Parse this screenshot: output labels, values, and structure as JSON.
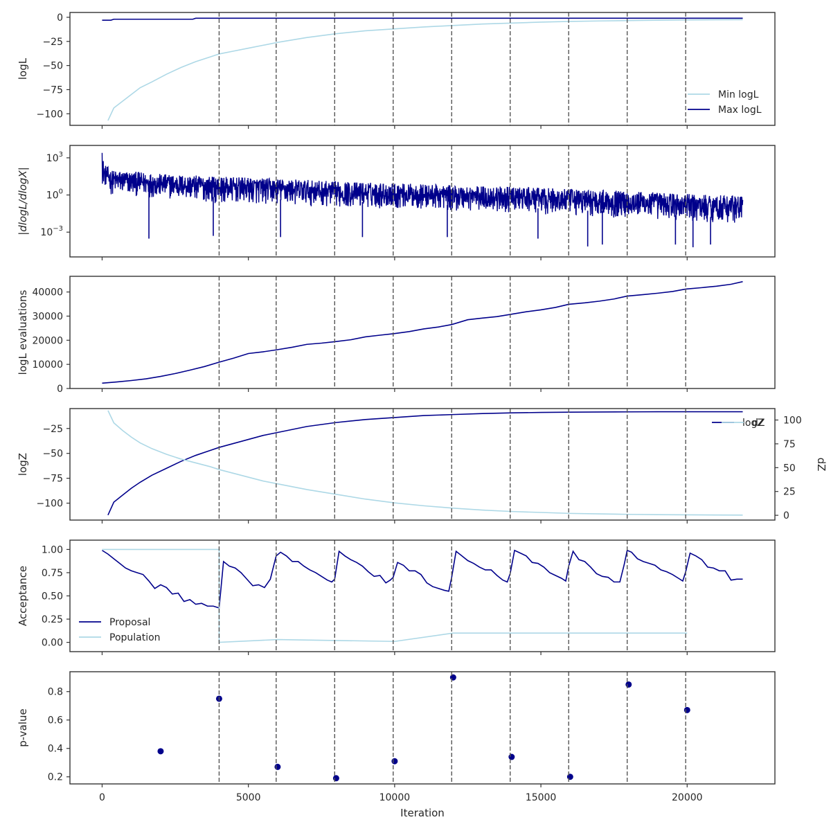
{
  "figure": {
    "xlabel": "Iteration",
    "xlim": [
      -1100,
      23000
    ],
    "xticks": [
      0,
      5000,
      10000,
      15000,
      20000
    ],
    "xtick_labels": [
      "0",
      "5000",
      "10000",
      "15000",
      "20000"
    ],
    "vlines": [
      4000,
      5950,
      7950,
      9950,
      11950,
      13950,
      15950,
      17950,
      19950
    ],
    "vline_style": "dashed",
    "colors": {
      "light": "#add8e6",
      "dark": "#00008b",
      "vline": "#555555",
      "axes": "#333333"
    }
  },
  "chart_data": [
    {
      "id": "logl",
      "type": "line",
      "ylabel": "logL",
      "ylim": [
        -112,
        5
      ],
      "yticks": [
        0,
        -25,
        -50,
        -75,
        -100
      ],
      "ytick_labels": [
        "0",
        "−25",
        "−50",
        "−75",
        "−100"
      ],
      "legend": "lower-right",
      "series": [
        {
          "name": "Min logL",
          "color": "#add8e6",
          "x": [
            200,
            400,
            700,
            1000,
            1300,
            1700,
            2200,
            2700,
            3200,
            3700,
            4000,
            4500,
            5000,
            5500,
            6000,
            7000,
            8000,
            9000,
            10000,
            11000,
            12000,
            13000,
            14000,
            15000,
            16000,
            17000,
            18000,
            19000,
            20000,
            21000,
            21900
          ],
          "y": [
            -107,
            -94,
            -87,
            -80,
            -73,
            -67,
            -59,
            -52,
            -46,
            -41,
            -38,
            -35,
            -32,
            -29,
            -26,
            -21,
            -17,
            -14,
            -12,
            -10,
            -8.5,
            -7,
            -6,
            -5,
            -4.3,
            -3.8,
            -3.4,
            -3,
            -2.8,
            -2.6,
            -2.5
          ]
        },
        {
          "name": "Max logL",
          "color": "#00008b",
          "x": [
            0,
            300,
            400,
            3100,
            3200,
            21900
          ],
          "y": [
            -3,
            -3,
            -2,
            -2,
            -1,
            -1
          ]
        }
      ]
    },
    {
      "id": "dlogl",
      "type": "line",
      "ylabel": "|dlogL/dlogX|",
      "yscale": "log",
      "ylim": [
        1e-05,
        10000
      ],
      "yticks": [
        1000,
        1,
        0.001
      ],
      "ytick_labels": [
        [
          "10",
          "3"
        ],
        [
          "10",
          "0"
        ],
        [
          "10",
          "−3"
        ]
      ],
      "series": [
        {
          "name": "",
          "color": "#00008b",
          "x_range": [
            0,
            21900
          ],
          "upper_envelope": {
            "x": [
              0,
              50,
              300,
              2000,
              4000,
              8000,
              12000,
              16000,
              20000,
              21900
            ],
            "y": [
              2500,
              300,
              100,
              50,
              30,
              12,
              6,
              3,
              1.2,
              0.9
            ]
          },
          "lower_envelope": {
            "x": [
              0,
              300,
              2000,
              4000,
              8000,
              12000,
              16000,
              20000,
              21900
            ],
            "y": [
              6,
              1,
              0.5,
              0.2,
              0.1,
              0.05,
              0.02,
              0.006,
              0.005
            ]
          },
          "low_spikes": {
            "x": [
              1600,
              3800,
              6100,
              8900,
              11800,
              14900,
              16600,
              17100,
              19600,
              20200,
              20800
            ],
            "y": [
              0.0003,
              0.0005,
              0.0004,
              0.0004,
              0.0004,
              0.0003,
              7e-05,
              0.0001,
              0.0001,
              6e-05,
              0.0001
            ]
          }
        }
      ]
    },
    {
      "id": "evals",
      "type": "line",
      "ylabel": "logL evaluations",
      "ylim": [
        0,
        46500
      ],
      "yticks": [
        0,
        10000,
        20000,
        30000,
        40000
      ],
      "ytick_labels": [
        "0",
        "10000",
        "20000",
        "30000",
        "40000"
      ],
      "series": [
        {
          "name": "",
          "color": "#00008b",
          "x": [
            0,
            500,
            1000,
            1500,
            2000,
            2500,
            3000,
            3500,
            4000,
            4500,
            5000,
            5500,
            5950,
            6500,
            7000,
            7500,
            7950,
            8500,
            9000,
            9500,
            9950,
            10500,
            11000,
            11500,
            11950,
            12500,
            13000,
            13500,
            13950,
            14500,
            15000,
            15500,
            15950,
            16500,
            17000,
            17500,
            17950,
            18500,
            19000,
            19500,
            19950,
            20500,
            21000,
            21500,
            21900
          ],
          "y": [
            2200,
            2700,
            3300,
            4000,
            5000,
            6200,
            7600,
            9100,
            10900,
            12600,
            14500,
            15200,
            16000,
            17100,
            18300,
            18800,
            19400,
            20200,
            21400,
            22100,
            22700,
            23600,
            24700,
            25500,
            26500,
            28500,
            29200,
            29800,
            30700,
            31800,
            32600,
            33600,
            34900,
            35500,
            36200,
            37100,
            38300,
            38900,
            39500,
            40200,
            41200,
            41800,
            42400,
            43200,
            44300
          ]
        }
      ]
    },
    {
      "id": "logz",
      "type": "line",
      "ylabel": "logZ",
      "ylim": [
        -117,
        -5
      ],
      "yticks": [
        -25,
        -50,
        -75,
        -100
      ],
      "ytick_labels": [
        "−25",
        "−50",
        "−75",
        "−100"
      ],
      "y2label": "dZ",
      "y2lim": [
        -5,
        112
      ],
      "y2ticks": [
        0,
        25,
        50,
        75,
        100
      ],
      "y2tick_labels": [
        "0",
        "25",
        "50",
        "75",
        "100"
      ],
      "legend": "top-right",
      "series": [
        {
          "name": "logZ",
          "axis": "left",
          "color": "#00008b",
          "x": [
            200,
            400,
            700,
            1000,
            1300,
            1700,
            2200,
            2700,
            3200,
            3700,
            4000,
            4500,
            5000,
            5500,
            6000,
            7000,
            8000,
            9000,
            10000,
            11000,
            12000,
            13000,
            14000,
            15000,
            16000,
            17000,
            18000,
            19000,
            20000,
            21000,
            21900
          ],
          "y": [
            -112,
            -99,
            -92,
            -85,
            -79,
            -72,
            -65,
            -58,
            -52,
            -47,
            -44,
            -40,
            -36,
            -32,
            -29,
            -23,
            -19,
            -16,
            -14,
            -12,
            -11,
            -10,
            -9.3,
            -8.9,
            -8.6,
            -8.4,
            -8.3,
            -8.2,
            -8.2,
            -8.2,
            -8.2
          ]
        },
        {
          "name": "dZ",
          "axis": "right",
          "color": "#add8e6",
          "x": [
            200,
            400,
            700,
            1000,
            1300,
            1700,
            2200,
            2700,
            3200,
            3700,
            4000,
            4500,
            5000,
            5500,
            6000,
            7000,
            8000,
            9000,
            10000,
            11000,
            12000,
            13000,
            14000,
            15000,
            16000,
            17000,
            18000,
            19000,
            20000,
            21000,
            21900
          ],
          "y": [
            110,
            97,
            89,
            82,
            76,
            70,
            64,
            59,
            55,
            51,
            48,
            44,
            40,
            36,
            33,
            27,
            22,
            17,
            13,
            10,
            7.5,
            5.5,
            4,
            3,
            2,
            1.5,
            1,
            0.7,
            0.5,
            0.3,
            0.2
          ]
        }
      ]
    },
    {
      "id": "acceptance",
      "type": "line",
      "ylabel": "Acceptance",
      "ylim": [
        -0.1,
        1.1
      ],
      "yticks": [
        0,
        0.25,
        0.5,
        0.75,
        1
      ],
      "ytick_labels": [
        "0.00",
        "0.25",
        "0.50",
        "0.75",
        "1.00"
      ],
      "legend": "lower-left",
      "series": [
        {
          "name": "Proposal",
          "color": "#00008b",
          "x": [
            0,
            200,
            400,
            600,
            800,
            1000,
            1200,
            1400,
            1600,
            1800,
            2000,
            2200,
            2400,
            2600,
            2800,
            3000,
            3200,
            3400,
            3600,
            3800,
            4000,
            4150,
            4350,
            4550,
            4750,
            4950,
            5150,
            5350,
            5550,
            5750,
            5950,
            6100,
            6300,
            6500,
            6700,
            6900,
            7100,
            7300,
            7500,
            7700,
            7850,
            7950,
            8100,
            8300,
            8500,
            8700,
            8900,
            9100,
            9300,
            9500,
            9700,
            9850,
            9950,
            10100,
            10300,
            10500,
            10700,
            10900,
            11100,
            11300,
            11500,
            11700,
            11850,
            11950,
            12100,
            12300,
            12500,
            12700,
            12900,
            13100,
            13300,
            13500,
            13700,
            13850,
            13950,
            14100,
            14300,
            14500,
            14700,
            14900,
            15100,
            15300,
            15500,
            15700,
            15850,
            15950,
            16100,
            16300,
            16500,
            16700,
            16900,
            17100,
            17300,
            17500,
            17700,
            17850,
            17950,
            18100,
            18300,
            18500,
            18700,
            18900,
            19100,
            19300,
            19500,
            19700,
            19850,
            19950,
            20100,
            20300,
            20500,
            20700,
            20900,
            21100,
            21300,
            21500,
            21700,
            21900
          ],
          "y": [
            0.99,
            0.95,
            0.9,
            0.85,
            0.8,
            0.77,
            0.75,
            0.73,
            0.66,
            0.58,
            0.62,
            0.59,
            0.52,
            0.53,
            0.44,
            0.46,
            0.41,
            0.42,
            0.39,
            0.39,
            0.37,
            0.87,
            0.82,
            0.8,
            0.75,
            0.68,
            0.61,
            0.62,
            0.59,
            0.68,
            0.93,
            0.97,
            0.93,
            0.87,
            0.87,
            0.82,
            0.78,
            0.75,
            0.71,
            0.67,
            0.65,
            0.68,
            0.98,
            0.93,
            0.89,
            0.86,
            0.82,
            0.76,
            0.71,
            0.72,
            0.64,
            0.67,
            0.7,
            0.86,
            0.83,
            0.77,
            0.77,
            0.73,
            0.64,
            0.6,
            0.58,
            0.56,
            0.55,
            0.7,
            0.98,
            0.93,
            0.88,
            0.85,
            0.81,
            0.78,
            0.78,
            0.72,
            0.67,
            0.65,
            0.74,
            0.99,
            0.96,
            0.93,
            0.86,
            0.85,
            0.81,
            0.75,
            0.72,
            0.69,
            0.66,
            0.82,
            0.98,
            0.89,
            0.87,
            0.81,
            0.74,
            0.71,
            0.7,
            0.65,
            0.65,
            0.84,
            0.99,
            0.97,
            0.9,
            0.87,
            0.85,
            0.83,
            0.78,
            0.76,
            0.73,
            0.69,
            0.66,
            0.76,
            0.96,
            0.93,
            0.89,
            0.81,
            0.8,
            0.77,
            0.77,
            0.67,
            0.68,
            0.68
          ]
        },
        {
          "name": "Population",
          "color": "#add8e6",
          "x": [
            0,
            4000,
            4000,
            6000,
            10000,
            12000,
            20000
          ],
          "y": [
            1,
            1,
            0,
            0.03,
            0.01,
            0.1,
            0.1
          ]
        }
      ]
    },
    {
      "id": "pvalue",
      "type": "scatter",
      "ylabel": "p-value",
      "ylim": [
        0.15,
        0.94
      ],
      "yticks": [
        0.2,
        0.4,
        0.6,
        0.8
      ],
      "ytick_labels": [
        "0.2",
        "0.4",
        "0.6",
        "0.8"
      ],
      "series": [
        {
          "name": "",
          "color": "#00008b",
          "x": [
            2000,
            4000,
            6000,
            8000,
            10000,
            12000,
            14000,
            16000,
            18000,
            20000
          ],
          "y": [
            0.38,
            0.75,
            0.27,
            0.19,
            0.31,
            0.9,
            0.34,
            0.2,
            0.85,
            0.67
          ]
        }
      ]
    }
  ]
}
